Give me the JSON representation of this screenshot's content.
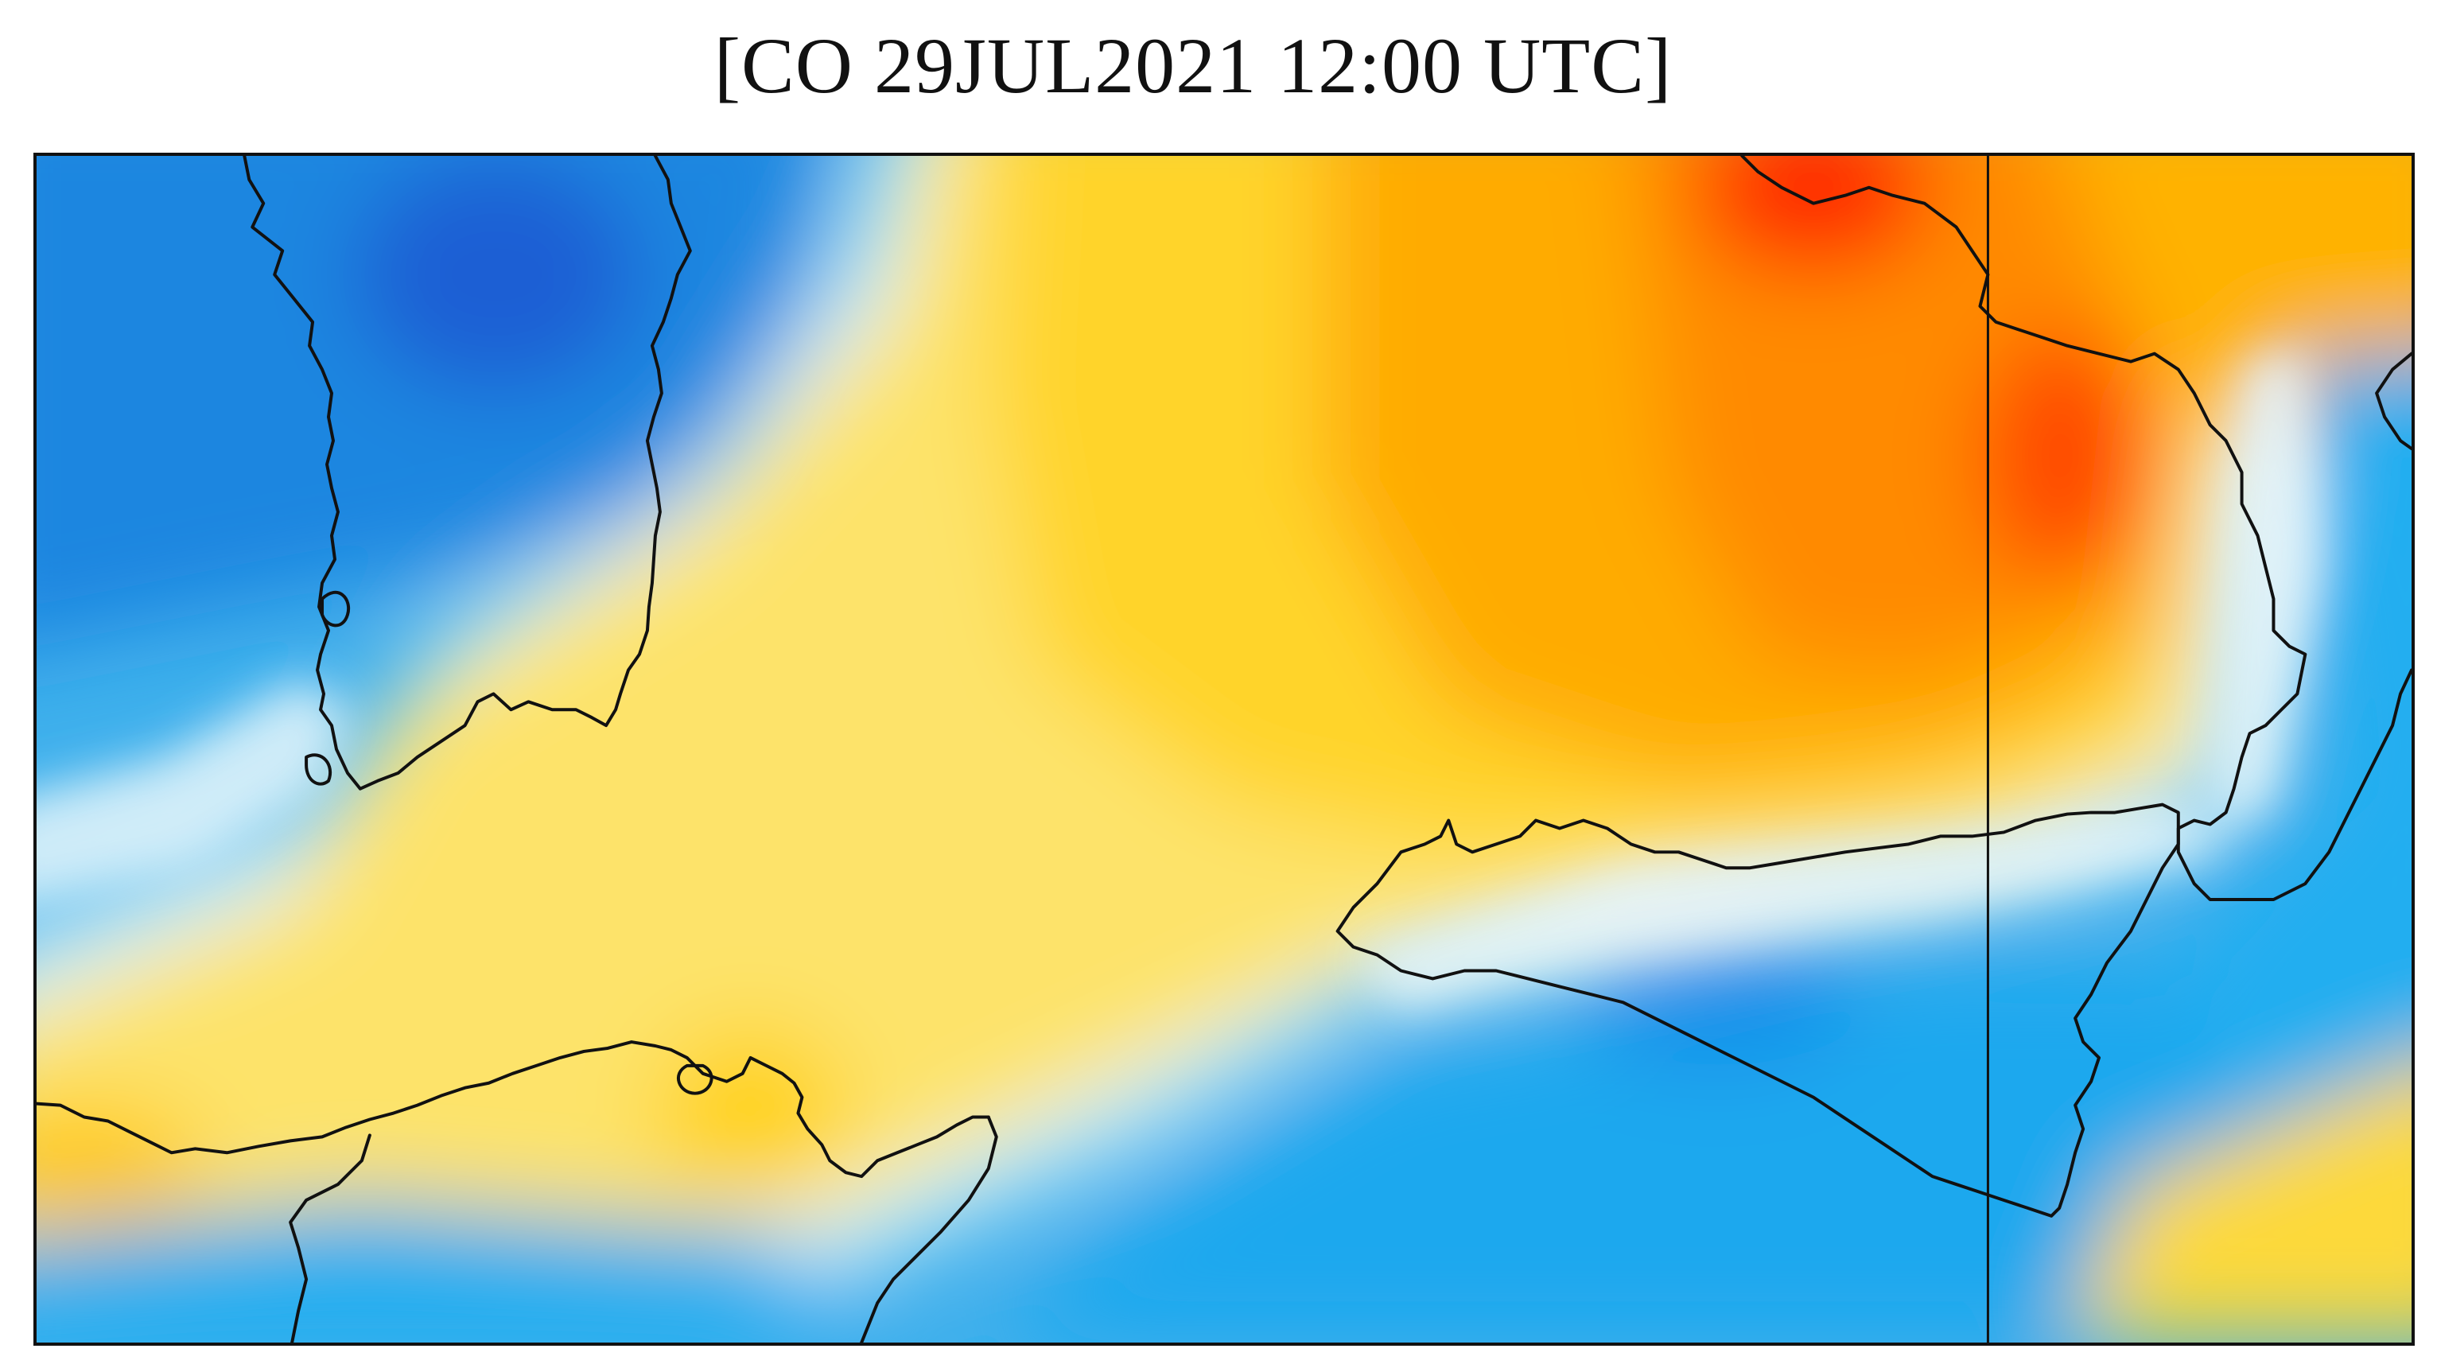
{
  "map": {
    "title": "[CO 29JUL2021 12:00 UTC]",
    "variable": "CO",
    "date": "29JUL2021",
    "time": "12:00 UTC",
    "palette": {
      "low": "#1e66d6",
      "low_mid": "#18aef0",
      "mid_light": "#e6f6fa",
      "mid": "#fde26c",
      "high_mid": "#ffb400",
      "high": "#ff7a00",
      "max": "#ff1e00"
    },
    "coastline_color": "#111111"
  }
}
